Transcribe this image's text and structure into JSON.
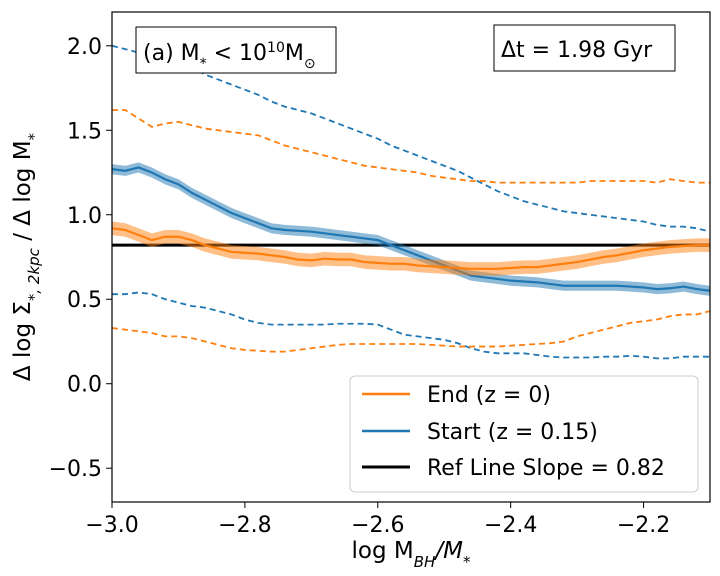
{
  "chart_data": {
    "type": "line",
    "xlabel_main": "log M",
    "xlabel_sub": "BH",
    "xlabel_rest": "/M",
    "xlabel_star": "*",
    "ylabel": "Δ log Σ*,2kpc / Δ log M*",
    "ylabel_parts": {
      "a": "Δ log Σ",
      "b": "*, 2kpc",
      "c": " / Δ log M",
      "d": "*"
    },
    "xlim": [
      -3.0,
      -2.1
    ],
    "ylim": [
      -0.7,
      2.2
    ],
    "xticks": [
      -3.0,
      -2.8,
      -2.6,
      -2.4,
      -2.2
    ],
    "xtick_labels": [
      "−3.0",
      "−2.8",
      "−2.6",
      "−2.4",
      "−2.2"
    ],
    "yticks": [
      -0.5,
      0.0,
      0.5,
      1.0,
      1.5,
      2.0
    ],
    "ytick_labels": [
      "−0.5",
      "0.0",
      "0.5",
      "1.0",
      "1.5",
      "2.0"
    ],
    "panel_label": {
      "prefix": "(a) M",
      "sub": "*",
      "lt": " < 10",
      "sup": "10",
      "m": "M",
      "sun": "⊙"
    },
    "dt_label": "Δt = 1.98 Gyr",
    "legend": {
      "position": "lower-right",
      "entries": [
        {
          "label": "End (z = 0)",
          "color": "#ff7f0e"
        },
        {
          "label": "Start (z = 0.15)",
          "color": "#1f77b4"
        },
        {
          "label": "Ref Line Slope = 0.82",
          "color": "#000000"
        }
      ]
    },
    "ref_line": {
      "y": 0.82,
      "color": "#000000"
    },
    "x": [
      -3.0,
      -2.98,
      -2.96,
      -2.94,
      -2.92,
      -2.9,
      -2.88,
      -2.86,
      -2.84,
      -2.82,
      -2.8,
      -2.78,
      -2.76,
      -2.74,
      -2.72,
      -2.7,
      -2.68,
      -2.66,
      -2.64,
      -2.62,
      -2.6,
      -2.58,
      -2.56,
      -2.54,
      -2.52,
      -2.5,
      -2.48,
      -2.46,
      -2.44,
      -2.42,
      -2.4,
      -2.38,
      -2.36,
      -2.34,
      -2.32,
      -2.3,
      -2.28,
      -2.26,
      -2.24,
      -2.22,
      -2.2,
      -2.18,
      -2.16,
      -2.14,
      -2.12,
      -2.1
    ],
    "series": [
      {
        "name": "Start (z = 0.15)",
        "color": "#1f77b4",
        "median": [
          1.27,
          1.26,
          1.28,
          1.25,
          1.21,
          1.18,
          1.13,
          1.09,
          1.05,
          1.01,
          0.98,
          0.95,
          0.92,
          0.91,
          0.905,
          0.9,
          0.89,
          0.88,
          0.87,
          0.86,
          0.85,
          0.82,
          0.79,
          0.76,
          0.73,
          0.7,
          0.67,
          0.64,
          0.63,
          0.62,
          0.61,
          0.605,
          0.6,
          0.59,
          0.58,
          0.58,
          0.58,
          0.58,
          0.58,
          0.575,
          0.57,
          0.56,
          0.565,
          0.575,
          0.56,
          0.55
        ],
        "band": 0.03,
        "upper": [
          2.0,
          1.98,
          1.96,
          1.94,
          1.92,
          1.9,
          1.87,
          1.83,
          1.8,
          1.77,
          1.74,
          1.71,
          1.67,
          1.64,
          1.62,
          1.6,
          1.57,
          1.54,
          1.51,
          1.48,
          1.45,
          1.41,
          1.38,
          1.35,
          1.32,
          1.29,
          1.26,
          1.22,
          1.18,
          1.14,
          1.11,
          1.08,
          1.06,
          1.04,
          1.02,
          1.01,
          1.0,
          0.99,
          0.98,
          0.97,
          0.96,
          0.94,
          0.93,
          0.93,
          0.92,
          0.9
        ],
        "lower": [
          0.53,
          0.53,
          0.54,
          0.53,
          0.5,
          0.48,
          0.46,
          0.45,
          0.43,
          0.41,
          0.38,
          0.36,
          0.35,
          0.35,
          0.35,
          0.35,
          0.35,
          0.355,
          0.355,
          0.355,
          0.35,
          0.32,
          0.29,
          0.28,
          0.27,
          0.26,
          0.24,
          0.21,
          0.19,
          0.18,
          0.18,
          0.18,
          0.17,
          0.16,
          0.155,
          0.155,
          0.155,
          0.16,
          0.16,
          0.165,
          0.16,
          0.15,
          0.15,
          0.16,
          0.16,
          0.16
        ]
      },
      {
        "name": "End (z = 0)",
        "color": "#ff7f0e",
        "median": [
          0.92,
          0.91,
          0.88,
          0.85,
          0.87,
          0.87,
          0.85,
          0.82,
          0.8,
          0.78,
          0.775,
          0.77,
          0.76,
          0.75,
          0.735,
          0.73,
          0.74,
          0.735,
          0.735,
          0.72,
          0.715,
          0.71,
          0.71,
          0.7,
          0.695,
          0.69,
          0.685,
          0.68,
          0.68,
          0.68,
          0.685,
          0.69,
          0.69,
          0.7,
          0.71,
          0.72,
          0.735,
          0.75,
          0.76,
          0.775,
          0.79,
          0.8,
          0.81,
          0.815,
          0.82,
          0.82
        ],
        "band": 0.04,
        "upper": [
          1.62,
          1.62,
          1.57,
          1.52,
          1.54,
          1.55,
          1.53,
          1.51,
          1.5,
          1.49,
          1.48,
          1.47,
          1.44,
          1.41,
          1.39,
          1.37,
          1.35,
          1.33,
          1.31,
          1.29,
          1.28,
          1.27,
          1.26,
          1.25,
          1.23,
          1.22,
          1.21,
          1.2,
          1.2,
          1.19,
          1.19,
          1.19,
          1.19,
          1.19,
          1.19,
          1.19,
          1.2,
          1.2,
          1.2,
          1.2,
          1.2,
          1.19,
          1.21,
          1.2,
          1.19,
          1.19
        ],
        "lower": [
          0.33,
          0.32,
          0.31,
          0.3,
          0.28,
          0.28,
          0.27,
          0.25,
          0.23,
          0.21,
          0.2,
          0.195,
          0.19,
          0.19,
          0.2,
          0.21,
          0.22,
          0.23,
          0.235,
          0.235,
          0.235,
          0.235,
          0.235,
          0.235,
          0.23,
          0.225,
          0.22,
          0.22,
          0.22,
          0.22,
          0.225,
          0.23,
          0.235,
          0.24,
          0.25,
          0.28,
          0.3,
          0.32,
          0.34,
          0.36,
          0.37,
          0.38,
          0.4,
          0.41,
          0.41,
          0.43
        ]
      }
    ]
  }
}
